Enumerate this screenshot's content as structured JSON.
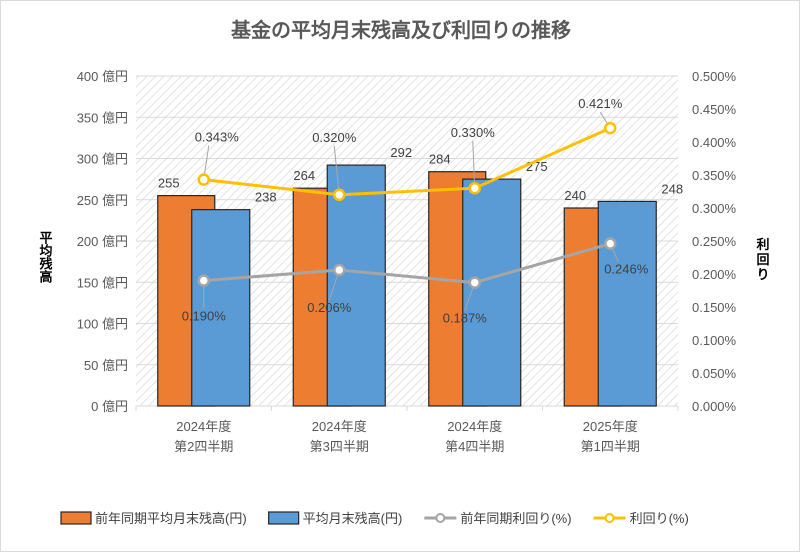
{
  "chart_data": {
    "type": "bar+line",
    "title": "基金の平均月末残高及び利回りの推移",
    "ylabel_left": "平均残高",
    "ylabel_right": "利回り",
    "categories": [
      [
        "2024年度",
        "第2四半期"
      ],
      [
        "2024年度",
        "第3四半期"
      ],
      [
        "2024年度",
        "第4四半期"
      ],
      [
        "2025年度",
        "第1四半期"
      ]
    ],
    "y_left": {
      "range": [
        0,
        400
      ],
      "ticks": [
        "0 億円",
        "50 億円",
        "100 億円",
        "150 億円",
        "200 億円",
        "250 億円",
        "300 億円",
        "350 億円",
        "400 億円"
      ]
    },
    "y_right": {
      "range": [
        0,
        0.5
      ],
      "ticks": [
        "0.000%",
        "0.050%",
        "0.100%",
        "0.150%",
        "0.200%",
        "0.250%",
        "0.300%",
        "0.350%",
        "0.400%",
        "0.450%",
        "0.500%"
      ]
    },
    "grid": true,
    "legend_position": "bottom",
    "series": [
      {
        "name": "前年同期平均月末残高(円)",
        "kind": "bar",
        "axis": "left",
        "color": "#ed7d31",
        "values": [
          255,
          264,
          284,
          240
        ],
        "labels": [
          "255",
          "264",
          "284",
          "240"
        ]
      },
      {
        "name": "平均月末残高(円)",
        "kind": "bar",
        "axis": "left",
        "color": "#5b9bd5",
        "values": [
          238,
          292,
          275,
          248
        ],
        "labels": [
          "238",
          "292",
          "275",
          "248"
        ]
      },
      {
        "name": "前年同期利回り(%)",
        "kind": "line",
        "axis": "right",
        "color": "#a5a5a5",
        "values": [
          0.19,
          0.206,
          0.187,
          0.246
        ],
        "labels": [
          "0.190%",
          "0.206%",
          "0.187%",
          "0.246%"
        ]
      },
      {
        "name": "利回り(%)",
        "kind": "line",
        "axis": "right",
        "color": "#ffc000",
        "values": [
          0.343,
          0.32,
          0.33,
          0.421
        ],
        "labels": [
          "0.343%",
          "0.320%",
          "0.330%",
          "0.421%"
        ]
      }
    ]
  }
}
